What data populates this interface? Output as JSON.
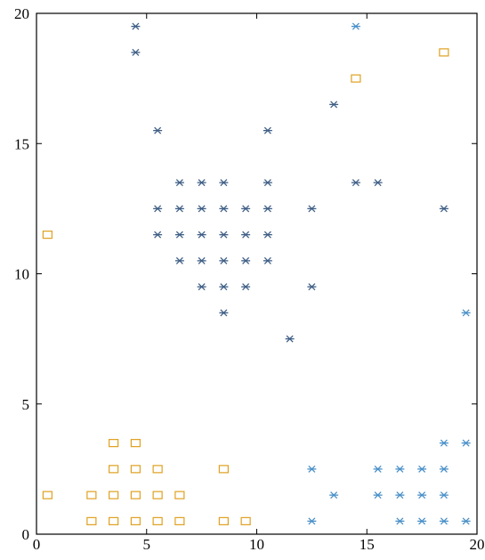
{
  "chart_data": {
    "type": "scatter",
    "xlim": [
      0,
      20
    ],
    "ylim": [
      0,
      20
    ],
    "xticks": [
      0,
      5,
      10,
      15,
      20
    ],
    "yticks": [
      0,
      5,
      10,
      15,
      20
    ],
    "grid": false,
    "legend": "none",
    "series": [
      {
        "marker": "square",
        "color": "#e0a020",
        "points": [
          [
            0.5,
            11.5
          ],
          [
            0.5,
            1.5
          ],
          [
            2.5,
            1.5
          ],
          [
            2.5,
            0.5
          ],
          [
            3.5,
            3.5
          ],
          [
            3.5,
            2.5
          ],
          [
            3.5,
            1.5
          ],
          [
            3.5,
            0.5
          ],
          [
            4.5,
            3.5
          ],
          [
            4.5,
            2.5
          ],
          [
            4.5,
            1.5
          ],
          [
            4.5,
            0.5
          ],
          [
            5.5,
            2.5
          ],
          [
            5.5,
            1.5
          ],
          [
            5.5,
            0.5
          ],
          [
            6.5,
            1.5
          ],
          [
            6.5,
            0.5
          ],
          [
            8.5,
            2.5
          ],
          [
            8.5,
            0.5
          ],
          [
            9.5,
            0.5
          ],
          [
            14.5,
            17.5
          ],
          [
            18.5,
            18.5
          ]
        ]
      },
      {
        "marker": "asterisk",
        "color": "#3f5f86",
        "points": [
          [
            4.5,
            19.5
          ],
          [
            4.5,
            18.5
          ],
          [
            5.5,
            15.5
          ],
          [
            5.5,
            12.5
          ],
          [
            5.5,
            11.5
          ],
          [
            6.5,
            13.5
          ],
          [
            6.5,
            12.5
          ],
          [
            6.5,
            11.5
          ],
          [
            6.5,
            10.5
          ],
          [
            7.5,
            13.5
          ],
          [
            7.5,
            12.5
          ],
          [
            7.5,
            11.5
          ],
          [
            7.5,
            10.5
          ],
          [
            7.5,
            9.5
          ],
          [
            8.5,
            13.5
          ],
          [
            8.5,
            12.5
          ],
          [
            8.5,
            11.5
          ],
          [
            8.5,
            10.5
          ],
          [
            8.5,
            9.5
          ],
          [
            8.5,
            8.5
          ],
          [
            9.5,
            12.5
          ],
          [
            9.5,
            11.5
          ],
          [
            9.5,
            10.5
          ],
          [
            9.5,
            9.5
          ],
          [
            10.5,
            15.5
          ],
          [
            10.5,
            13.5
          ],
          [
            10.5,
            12.5
          ],
          [
            10.5,
            11.5
          ],
          [
            10.5,
            10.5
          ],
          [
            11.5,
            7.5
          ],
          [
            12.5,
            12.5
          ],
          [
            12.5,
            9.5
          ],
          [
            13.5,
            16.5
          ],
          [
            14.5,
            13.5
          ],
          [
            15.5,
            13.5
          ],
          [
            18.5,
            12.5
          ]
        ]
      },
      {
        "marker": "asterisk",
        "color": "#4a90c8",
        "points": [
          [
            12.5,
            2.5
          ],
          [
            12.5,
            0.5
          ],
          [
            13.5,
            1.5
          ],
          [
            14.5,
            19.5
          ],
          [
            15.5,
            2.5
          ],
          [
            15.5,
            1.5
          ],
          [
            16.5,
            2.5
          ],
          [
            16.5,
            1.5
          ],
          [
            16.5,
            0.5
          ],
          [
            17.5,
            2.5
          ],
          [
            17.5,
            1.5
          ],
          [
            17.5,
            0.5
          ],
          [
            18.5,
            3.5
          ],
          [
            18.5,
            2.5
          ],
          [
            18.5,
            1.5
          ],
          [
            18.5,
            0.5
          ],
          [
            19.5,
            8.5
          ],
          [
            19.5,
            3.5
          ],
          [
            19.5,
            0.5
          ]
        ]
      }
    ]
  }
}
